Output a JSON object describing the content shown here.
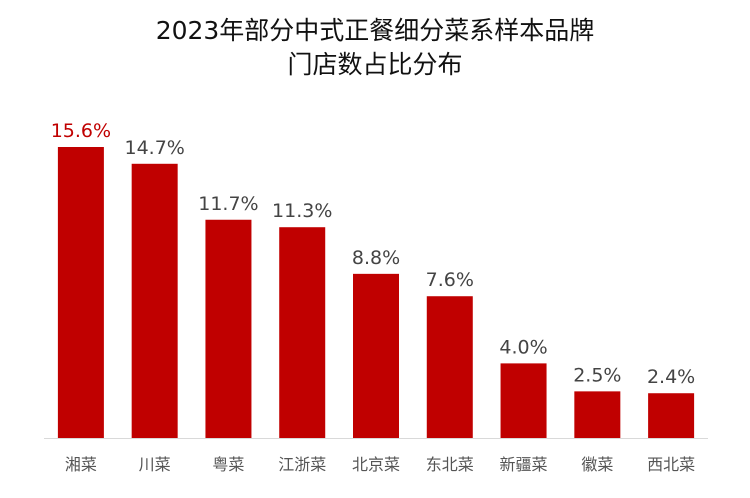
{
  "chart_data": {
    "type": "bar",
    "title_lines": [
      "2023年部分中式正餐细分菜系样本品牌",
      "门店数占比分布"
    ],
    "categories": [
      "湘菜",
      "川菜",
      "粤菜",
      "江浙菜",
      "北京菜",
      "东北菜",
      "新疆菜",
      "徽菜",
      "西北菜"
    ],
    "values": [
      15.6,
      14.7,
      11.7,
      11.3,
      8.8,
      7.6,
      4.0,
      2.5,
      2.4
    ],
    "value_labels": [
      "15.6%",
      "14.7%",
      "11.7%",
      "11.3%",
      "8.8%",
      "7.6%",
      "4.0%",
      "2.5%",
      "2.4%"
    ],
    "ylim": [
      0,
      15.6
    ],
    "grid": false,
    "legend": "none",
    "colors": {
      "bar": "#c00000",
      "highlight_label": "#c00000",
      "label": "#444444",
      "axis": "#d9d9d9",
      "tick": "#555555"
    }
  }
}
